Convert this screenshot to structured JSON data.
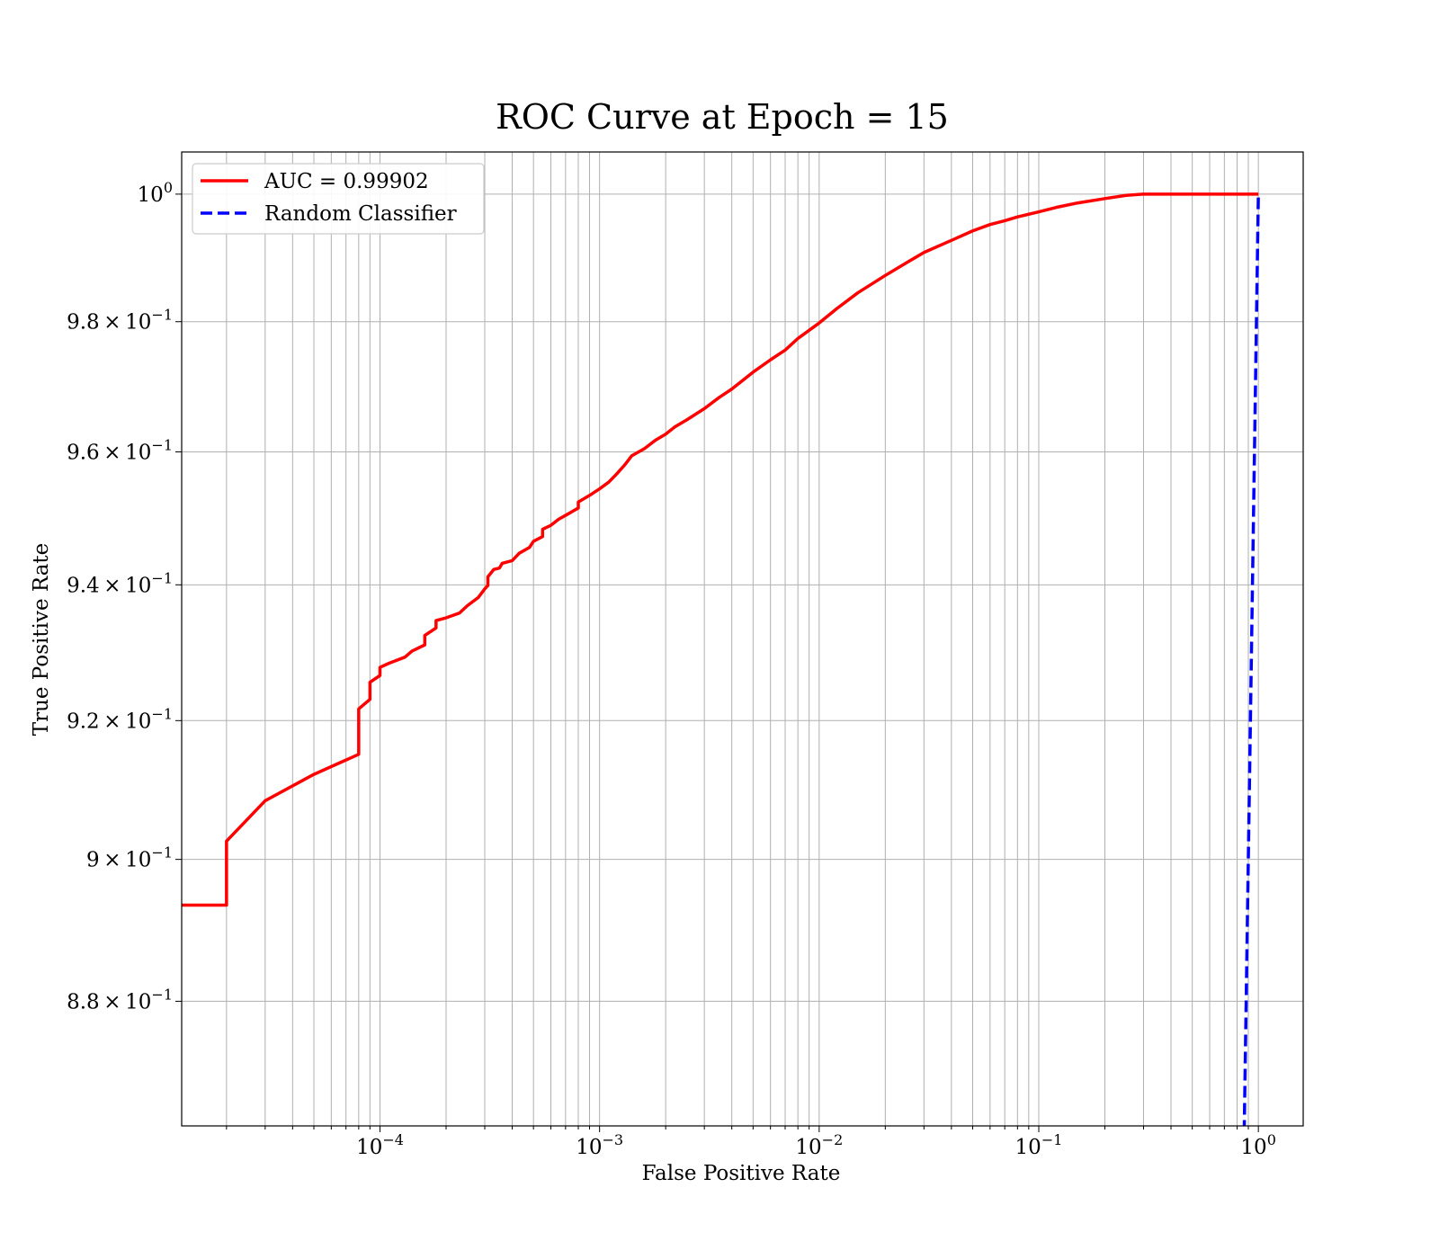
{
  "chart_data": {
    "type": "line",
    "title": "ROC Curve at Epoch = 15",
    "xlabel": "False Positive Rate",
    "ylabel": "True Positive Rate",
    "xscale": "log",
    "yscale": "log",
    "xlim": [
      1.25e-05,
      1.6
    ],
    "ylim": [
      0.8628,
      1.0067
    ],
    "grid": "on (major and minor)",
    "legend_position": "top-left",
    "x_tick_labels": [
      {
        "base": "10",
        "exp": "−4",
        "value": 0.0001
      },
      {
        "base": "10",
        "exp": "−3",
        "value": 0.001
      },
      {
        "base": "10",
        "exp": "−2",
        "value": 0.01
      },
      {
        "base": "10",
        "exp": "−1",
        "value": 0.1
      },
      {
        "base": "10",
        "exp": "0",
        "value": 1
      }
    ],
    "y_tick_labels": [
      {
        "mant": "",
        "base": "10",
        "exp": "0",
        "value": 1.0
      },
      {
        "mant": "9.8",
        "base": "10",
        "exp": "−1",
        "value": 0.98
      },
      {
        "mant": "9.6",
        "base": "10",
        "exp": "−1",
        "value": 0.96
      },
      {
        "mant": "9.4",
        "base": "10",
        "exp": "−1",
        "value": 0.94
      },
      {
        "mant": "9.2",
        "base": "10",
        "exp": "−1",
        "value": 0.92
      },
      {
        "mant": "9",
        "base": "10",
        "exp": "−1",
        "value": 0.9
      },
      {
        "mant": "8.8",
        "base": "10",
        "exp": "−1",
        "value": 0.88
      }
    ],
    "series": [
      {
        "name": "AUC = 0.99902",
        "color": "#ff0000",
        "style": "solid",
        "points": [
          [
            1.25e-05,
            0.8935
          ],
          [
            2e-05,
            0.8935
          ],
          [
            2e-05,
            0.9026
          ],
          [
            3e-05,
            0.9084
          ],
          [
            5e-05,
            0.9122
          ],
          [
            8e-05,
            0.9151
          ],
          [
            8e-05,
            0.9217
          ],
          [
            9e-05,
            0.9231
          ],
          [
            9e-05,
            0.9256
          ],
          [
            0.0001,
            0.9266
          ],
          [
            0.0001,
            0.9278
          ],
          [
            0.00011,
            0.9284
          ],
          [
            0.00013,
            0.9293
          ],
          [
            0.00014,
            0.9302
          ],
          [
            0.00016,
            0.9311
          ],
          [
            0.00016,
            0.9325
          ],
          [
            0.00018,
            0.9336
          ],
          [
            0.00018,
            0.9347
          ],
          [
            0.0002,
            0.9351
          ],
          [
            0.00023,
            0.9358
          ],
          [
            0.00025,
            0.9369
          ],
          [
            0.00028,
            0.9381
          ],
          [
            0.0003,
            0.9394
          ],
          [
            0.00031,
            0.9399
          ],
          [
            0.00031,
            0.9412
          ],
          [
            0.00033,
            0.9423
          ],
          [
            0.00035,
            0.9425
          ],
          [
            0.00036,
            0.9432
          ],
          [
            0.0004,
            0.9436
          ],
          [
            0.00043,
            0.9447
          ],
          [
            0.00048,
            0.9456
          ],
          [
            0.0005,
            0.9465
          ],
          [
            0.00055,
            0.9472
          ],
          [
            0.00055,
            0.9483
          ],
          [
            0.0006,
            0.9489
          ],
          [
            0.00065,
            0.9498
          ],
          [
            0.0007,
            0.9504
          ],
          [
            0.0008,
            0.9515
          ],
          [
            0.0008,
            0.9524
          ],
          [
            0.0009,
            0.9534
          ],
          [
            0.001,
            0.9544
          ],
          [
            0.0011,
            0.9554
          ],
          [
            0.0012,
            0.9567
          ],
          [
            0.0013,
            0.958
          ],
          [
            0.0014,
            0.9594
          ],
          [
            0.0016,
            0.9605
          ],
          [
            0.0018,
            0.9618
          ],
          [
            0.002,
            0.9627
          ],
          [
            0.0022,
            0.9638
          ],
          [
            0.0025,
            0.9649
          ],
          [
            0.003,
            0.9666
          ],
          [
            0.0035,
            0.9683
          ],
          [
            0.004,
            0.9696
          ],
          [
            0.005,
            0.9722
          ],
          [
            0.006,
            0.9741
          ],
          [
            0.007,
            0.9756
          ],
          [
            0.008,
            0.9774
          ],
          [
            0.01,
            0.9798
          ],
          [
            0.012,
            0.982
          ],
          [
            0.015,
            0.9845
          ],
          [
            0.02,
            0.9872
          ],
          [
            0.025,
            0.9892
          ],
          [
            0.03,
            0.9908
          ],
          [
            0.04,
            0.9927
          ],
          [
            0.05,
            0.9942
          ],
          [
            0.06,
            0.9952
          ],
          [
            0.07,
            0.9958
          ],
          [
            0.08,
            0.9964
          ],
          [
            0.1,
            0.9972
          ],
          [
            0.12,
            0.9979
          ],
          [
            0.15,
            0.9986
          ],
          [
            0.2,
            0.9993
          ],
          [
            0.25,
            0.9998
          ],
          [
            0.3,
            1.0
          ],
          [
            1.0,
            1.0
          ]
        ]
      },
      {
        "name": "Random Classifier",
        "color": "#0000ff",
        "style": "dashed",
        "points": [
          [
            0.862,
            0.862
          ],
          [
            1.0,
            1.0
          ]
        ]
      }
    ]
  }
}
